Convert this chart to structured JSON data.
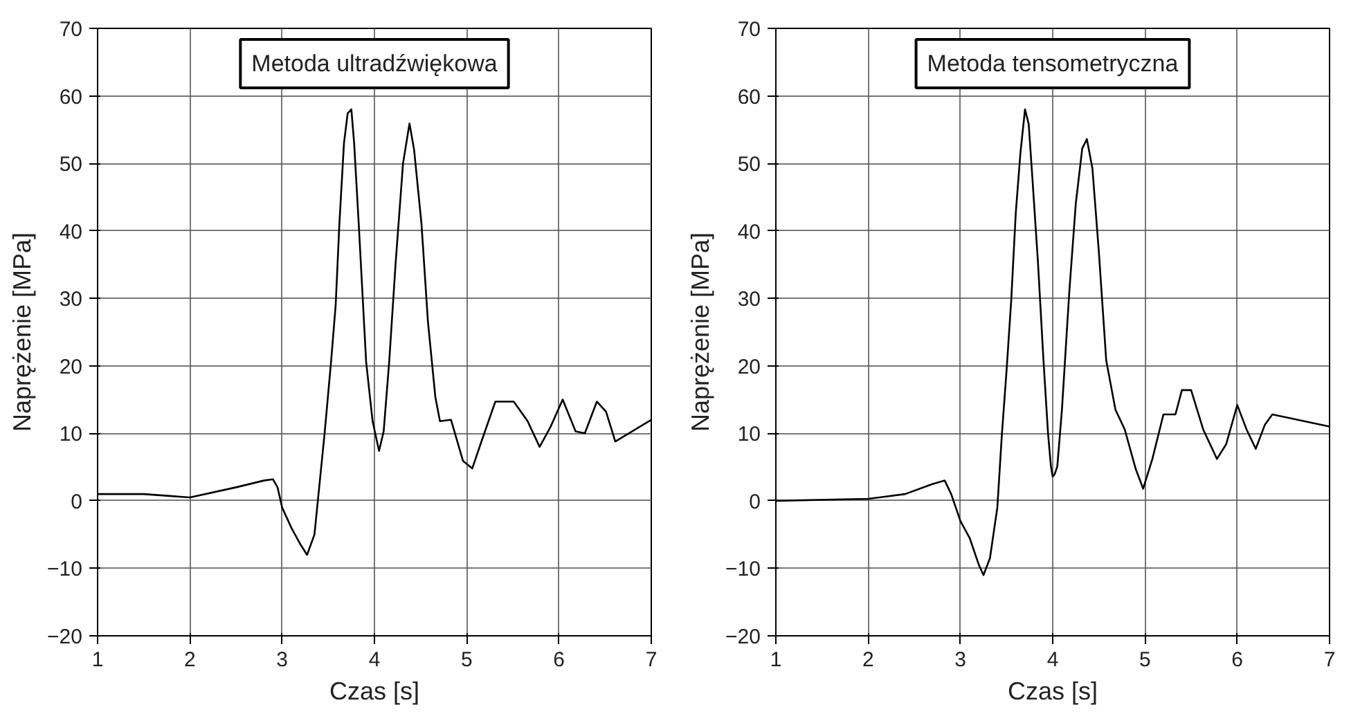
{
  "chart_data": [
    {
      "type": "line",
      "title": "Metoda ultradźwiękowa",
      "xlabel": "Czas [s]",
      "ylabel": "Naprężenie [MPa]",
      "color": "#000000",
      "grid": true,
      "line_style": "solid",
      "xlim": [
        1,
        7
      ],
      "ylim": [
        -20,
        70
      ],
      "xticks": [
        1,
        2,
        3,
        4,
        5,
        6,
        7
      ],
      "yticks": [
        -20,
        -10,
        0,
        10,
        20,
        30,
        40,
        50,
        60,
        70
      ],
      "x": [
        1,
        1.5,
        2,
        2.5,
        2.8,
        2.9,
        2.95,
        3.0,
        3.1,
        3.2,
        3.27,
        3.35,
        3.46,
        3.53,
        3.58,
        3.62,
        3.67,
        3.71,
        3.75,
        3.78,
        3.83,
        3.91,
        3.98,
        4.05,
        4.1,
        4.16,
        4.23,
        4.31,
        4.38,
        4.43,
        4.51,
        4.58,
        4.66,
        4.71,
        4.83,
        4.96,
        5.06,
        5.16,
        5.31,
        5.51,
        5.66,
        5.79,
        5.91,
        6.04,
        6.18,
        6.28,
        6.41,
        6.51,
        6.61,
        7
      ],
      "values": [
        1,
        1,
        0.5,
        2,
        3,
        3.2,
        2,
        -1,
        -4,
        -6.5,
        -8,
        -5,
        10,
        20.6,
        29,
        41,
        53,
        57.4,
        58,
        53,
        41,
        20.6,
        11.8,
        7.4,
        10.3,
        20.6,
        35.3,
        50,
        55.9,
        52,
        41,
        26.5,
        15.4,
        11.8,
        12,
        5.9,
        4.8,
        8.8,
        14.7,
        14.7,
        11.8,
        8,
        11,
        15,
        10.3,
        10,
        14.7,
        13.2,
        8.8,
        12
      ]
    },
    {
      "type": "line",
      "title": "Metoda tensometryczna",
      "xlabel": "Czas [s]",
      "ylabel": "Naprężenie [MPa]",
      "color": "#000000",
      "grid": true,
      "line_style": "solid",
      "xlim": [
        1,
        7
      ],
      "ylim": [
        -20,
        70
      ],
      "xticks": [
        1,
        2,
        3,
        4,
        5,
        6,
        7
      ],
      "yticks": [
        -20,
        -10,
        0,
        10,
        20,
        30,
        40,
        50,
        60,
        70
      ],
      "x": [
        1,
        2,
        2.4,
        2.7,
        2.83,
        2.9,
        3.0,
        3.1,
        3.2,
        3.25,
        3.32,
        3.4,
        3.45,
        3.5,
        3.55,
        3.6,
        3.65,
        3.7,
        3.74,
        3.78,
        3.84,
        3.9,
        3.95,
        3.98,
        4.0,
        4.02,
        4.05,
        4.1,
        4.18,
        4.25,
        4.32,
        4.37,
        4.43,
        4.5,
        4.58,
        4.68,
        4.78,
        4.9,
        4.98,
        5.08,
        5.2,
        5.33,
        5.4,
        5.5,
        5.63,
        5.78,
        5.88,
        6.0,
        6.1,
        6.2,
        6.3,
        6.38,
        7
      ],
      "values": [
        0,
        0.3,
        1,
        2.5,
        3,
        1,
        -3,
        -5.5,
        -9.5,
        -11,
        -8.5,
        -1,
        10,
        19.3,
        29.6,
        42.7,
        51.5,
        58,
        55.8,
        47.8,
        35.4,
        20.8,
        9.9,
        5.2,
        3.6,
        3.9,
        5.1,
        13.5,
        31,
        44,
        52.2,
        53.6,
        49.3,
        36.9,
        20.8,
        13.5,
        10.6,
        4.7,
        1.8,
        6.2,
        12.8,
        12.8,
        16.4,
        16.4,
        10.6,
        6.2,
        8.4,
        14.2,
        10.6,
        7.7,
        11.3,
        12.8,
        11
      ]
    }
  ]
}
